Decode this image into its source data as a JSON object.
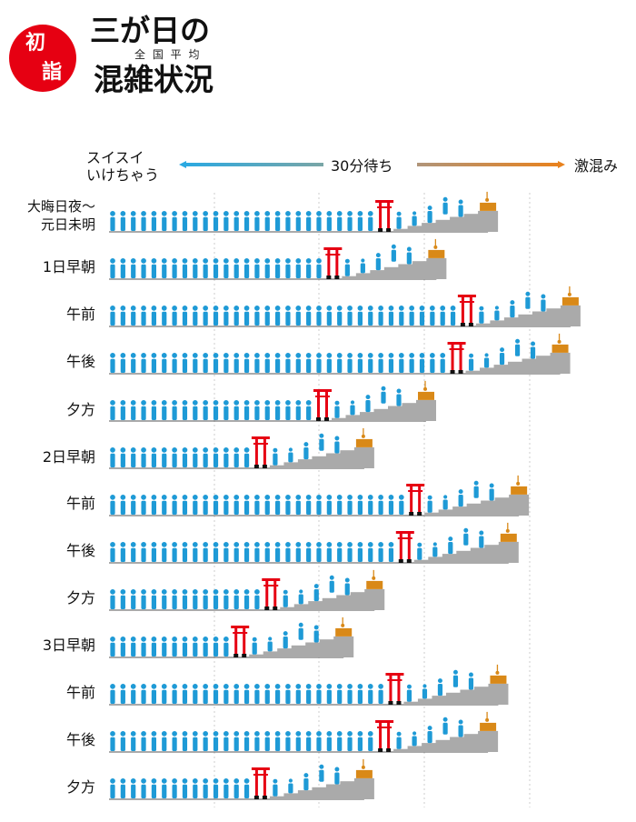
{
  "header": {
    "badge_top": "初",
    "badge_bottom": "詣",
    "title_line1": "三が日の",
    "ruby": "全 国 平 均",
    "title_line2": "混雑状況"
  },
  "legend": {
    "left_line1": "スイスイ",
    "left_line2": "いけちゃう",
    "middle": "30分待ち",
    "right": "激混み"
  },
  "colors": {
    "person": "#1e9ad6",
    "torii": "#e60012",
    "stairs": "#aaaaaa",
    "box": "#d98918",
    "badge": "#e60012",
    "blue_end": "#2ba9e1",
    "orange_end": "#e8821e"
  },
  "chart_data": {
    "type": "bar",
    "title": "三が日の混雑状況（全国平均）",
    "scale_label_low": "スイスイいけちゃう",
    "scale_label_mid": "30分待ち",
    "scale_label_high": "激混み",
    "categories": [
      "大晦日夜～元日未明",
      "1日早朝",
      "午前",
      "午後",
      "夕方",
      "2日早朝",
      "午前",
      "午後",
      "夕方",
      "3日早朝",
      "午前",
      "午後",
      "夕方"
    ],
    "day_labels": [
      "大晦日夜～元日未明",
      "1日早朝",
      "",
      "",
      "",
      "2日早朝",
      "",
      "",
      "",
      "3日早朝",
      "",
      "",
      ""
    ],
    "time_labels": [
      "",
      "",
      "午前",
      "午後",
      "夕方",
      "",
      "午前",
      "午後",
      "夕方",
      "",
      "午前",
      "午後",
      "夕方"
    ],
    "crowd_counts": [
      26,
      21,
      34,
      33,
      20,
      14,
      29,
      28,
      15,
      12,
      27,
      26,
      14
    ]
  }
}
